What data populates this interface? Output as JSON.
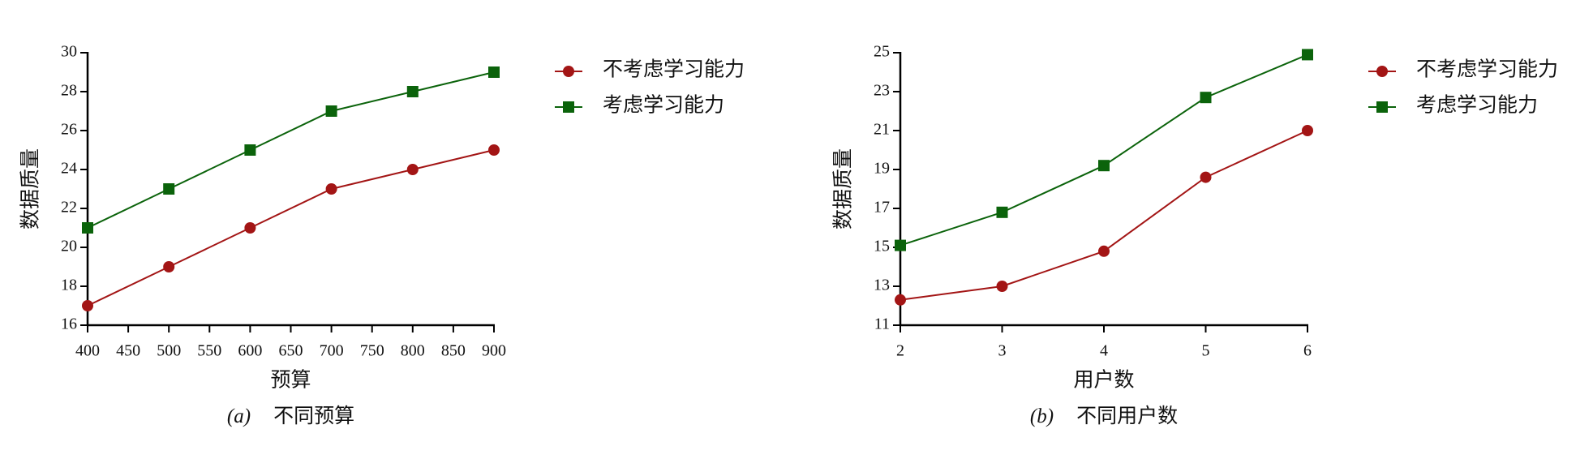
{
  "chart_data": [
    {
      "type": "line",
      "x": [
        400,
        500,
        600,
        700,
        800,
        900
      ],
      "series": [
        {
          "name": "不考虑学习能力",
          "color": "#a31515",
          "marker": "circle",
          "values": [
            17,
            19,
            21,
            23,
            24,
            25
          ]
        },
        {
          "name": "考虑学习能力",
          "color": "#0b630b",
          "marker": "square",
          "values": [
            21,
            23,
            25,
            27,
            28,
            29
          ]
        }
      ],
      "xlim": [
        400,
        900
      ],
      "xticks": [
        400,
        450,
        500,
        550,
        600,
        650,
        700,
        750,
        800,
        850,
        900
      ],
      "ylim": [
        16,
        30
      ],
      "yticks": [
        16,
        18,
        20,
        22,
        24,
        26,
        28,
        30
      ],
      "xlabel": "预算",
      "ylabel": "数据质量",
      "caption_label": "(a)",
      "caption": "不同预算",
      "legend": "right"
    },
    {
      "type": "line",
      "x": [
        2,
        3,
        4,
        5,
        6
      ],
      "series": [
        {
          "name": "不考虑学习能力",
          "color": "#a31515",
          "marker": "circle",
          "values": [
            12.3,
            13.0,
            14.8,
            18.6,
            21.0
          ]
        },
        {
          "name": "考虑学习能力",
          "color": "#0b630b",
          "marker": "square",
          "values": [
            15.1,
            16.8,
            19.2,
            22.7,
            24.9
          ]
        }
      ],
      "xlim": [
        2,
        6
      ],
      "xticks": [
        2,
        3,
        4,
        5,
        6
      ],
      "ylim": [
        11,
        25
      ],
      "yticks": [
        11,
        13,
        15,
        17,
        19,
        21,
        23,
        25
      ],
      "xlabel": "用户数",
      "ylabel": "数据质量",
      "caption_label": "(b)",
      "caption": "不同用户数",
      "legend": "right"
    }
  ]
}
